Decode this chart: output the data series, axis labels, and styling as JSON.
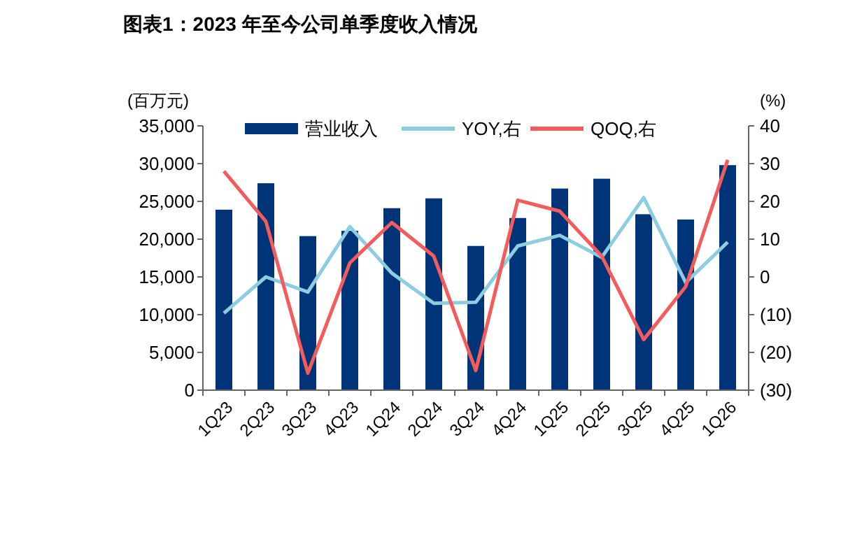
{
  "chart_data": {
    "type": "bar",
    "title": "图表1：2023 年至今公司单季度收入情况",
    "ylabel": "(百万元)",
    "y2label": "(%)",
    "categories": [
      "1Q23",
      "2Q23",
      "3Q23",
      "4Q23",
      "1Q24",
      "2Q24",
      "3Q24",
      "4Q24",
      "1Q25",
      "2Q25",
      "3Q25",
      "4Q25",
      "1Q26"
    ],
    "series": [
      {
        "name": "营业收入",
        "color": "#003479",
        "values": [
          23900,
          27400,
          20400,
          21100,
          24100,
          25400,
          19100,
          22800,
          26700,
          28000,
          23300,
          22600,
          29800
        ]
      },
      {
        "name": "YOY,右",
        "type": "line",
        "axis": "y2",
        "color": "#8ccde0",
        "values": [
          -9.6,
          0,
          -4,
          13.3,
          1,
          -7,
          -6.7,
          8.2,
          11,
          5.2,
          21,
          -1.5,
          9.2
        ]
      },
      {
        "name": "QOQ,右",
        "type": "line",
        "axis": "y2",
        "color": "#f45c5c",
        "values": [
          28,
          14.7,
          -25.5,
          3.7,
          14.4,
          5.5,
          -24.8,
          20.3,
          17.4,
          5.5,
          -16.6,
          -2.6,
          31
        ]
      }
    ],
    "ylim": [
      0,
      35000
    ],
    "yticks": [
      {
        "value": 0,
        "label": "0"
      },
      {
        "value": 5000,
        "label": "5,000"
      },
      {
        "value": 10000,
        "label": "10,000"
      },
      {
        "value": 15000,
        "label": "15,000"
      },
      {
        "value": 20000,
        "label": "20,000"
      },
      {
        "value": 25000,
        "label": "25,000"
      },
      {
        "value": 30000,
        "label": "30,000"
      },
      {
        "value": 35000,
        "label": "35,000"
      }
    ],
    "y2lim": [
      -30,
      40
    ],
    "y2ticks": [
      {
        "value": -30,
        "label": "(30)"
      },
      {
        "value": -20,
        "label": "(20)"
      },
      {
        "value": -10,
        "label": "(10)"
      },
      0,
      10,
      20,
      30,
      40
    ],
    "grid": false,
    "legend": "top",
    "line_style": "solid",
    "marker": "none"
  }
}
